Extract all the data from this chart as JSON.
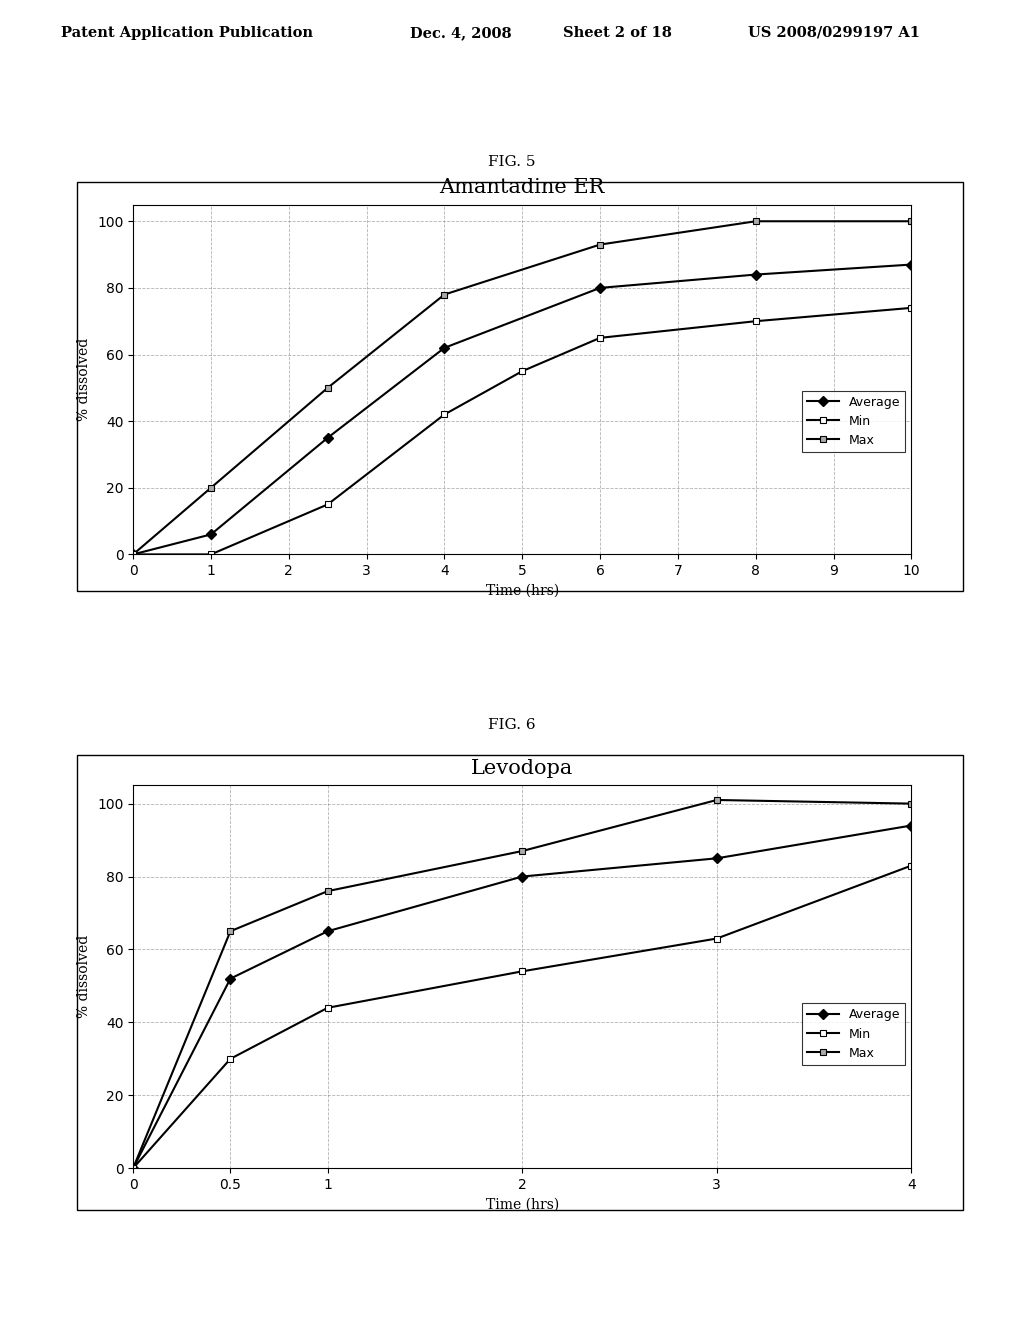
{
  "fig5": {
    "title": "Amantadine ER",
    "xlabel": "Time (hrs)",
    "ylabel": "% dissolved",
    "xlim": [
      0,
      10
    ],
    "ylim": [
      0,
      105
    ],
    "xticks": [
      0,
      1,
      2,
      3,
      4,
      5,
      6,
      7,
      8,
      9,
      10
    ],
    "yticks": [
      0,
      20,
      40,
      60,
      80,
      100
    ],
    "average_x": [
      0,
      1,
      2.5,
      4,
      6,
      8,
      10
    ],
    "average_y": [
      0,
      6,
      35,
      62,
      80,
      84,
      87
    ],
    "min_x": [
      0,
      1,
      2.5,
      4,
      5,
      6,
      8,
      10
    ],
    "min_y": [
      0,
      0,
      15,
      42,
      55,
      65,
      70,
      74
    ],
    "max_x": [
      0,
      1,
      2.5,
      4,
      6,
      8,
      10
    ],
    "max_y": [
      0,
      20,
      50,
      78,
      93,
      100,
      100
    ]
  },
  "fig6": {
    "title": "Levodopa",
    "xlabel": "Time (hrs)",
    "ylabel": "% dissolved",
    "xlim": [
      0,
      4
    ],
    "ylim": [
      0,
      105
    ],
    "xticks": [
      0,
      0.5,
      1,
      2,
      3,
      4
    ],
    "xtick_labels": [
      "0",
      "0.5",
      "1",
      "2",
      "3",
      "4"
    ],
    "yticks": [
      0,
      20,
      40,
      60,
      80,
      100
    ],
    "average_x": [
      0,
      0.5,
      1,
      2,
      3,
      4
    ],
    "average_y": [
      0,
      52,
      65,
      80,
      85,
      94
    ],
    "min_x": [
      0,
      0.5,
      1,
      2,
      3,
      4
    ],
    "min_y": [
      0,
      30,
      44,
      54,
      63,
      83
    ],
    "max_x": [
      0,
      0.5,
      1,
      2,
      3,
      4
    ],
    "max_y": [
      0,
      65,
      76,
      87,
      101,
      100
    ]
  },
  "background_color": "#ffffff",
  "plot_bg_color": "#ffffff",
  "header_text": "Patent Application Publication",
  "header_date": "Dec. 4, 2008",
  "header_sheet": "Sheet 2 of 18",
  "header_patent": "US 2008/0299197 A1",
  "fig5_label": "FIG. 5",
  "fig6_label": "FIG. 6"
}
